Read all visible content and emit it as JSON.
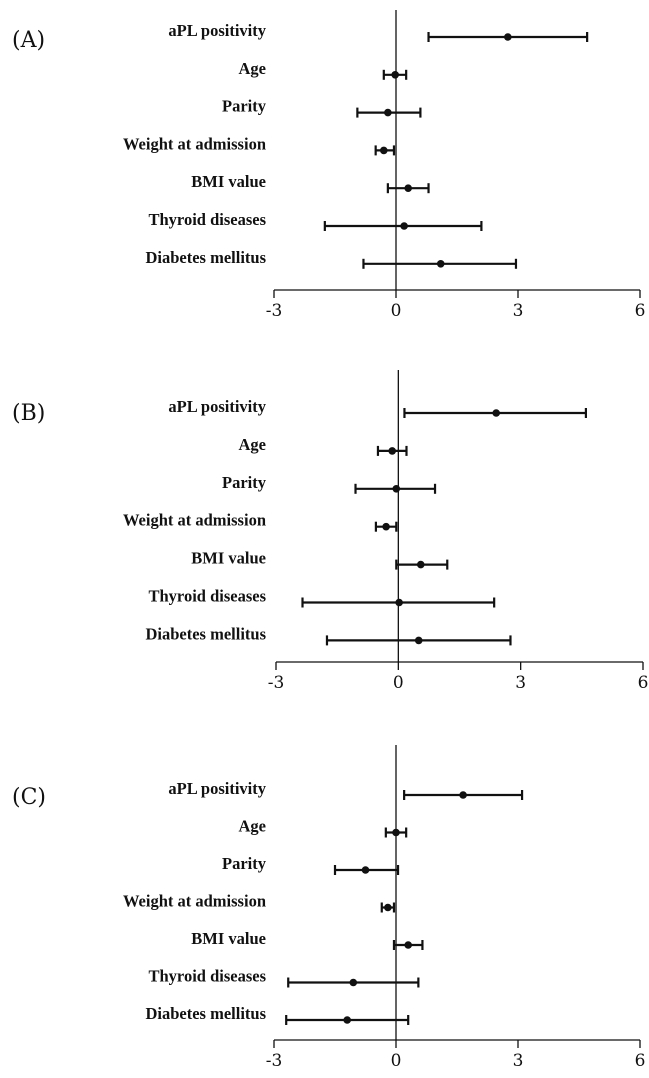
{
  "chart_data": [
    {
      "type": "forest",
      "panel_label": "(A)",
      "xlim": [
        -3,
        6
      ],
      "xticks": [
        -3,
        0,
        3,
        6
      ],
      "reference_line": 0,
      "rows": [
        {
          "label": "aPL positivity",
          "estimate": 2.75,
          "lower": 0.8,
          "upper": 4.7
        },
        {
          "label": "Age",
          "estimate": -0.02,
          "lower": -0.3,
          "upper": 0.25
        },
        {
          "label": "Parity",
          "estimate": -0.2,
          "lower": -0.95,
          "upper": 0.6
        },
        {
          "label": "Weight at admission",
          "estimate": -0.3,
          "lower": -0.5,
          "upper": -0.05
        },
        {
          "label": "BMI value",
          "estimate": 0.3,
          "lower": -0.2,
          "upper": 0.8
        },
        {
          "label": "Thyroid diseases",
          "estimate": 0.2,
          "lower": -1.75,
          "upper": 2.1
        },
        {
          "label": "Diabetes mellitus",
          "estimate": 1.1,
          "lower": -0.8,
          "upper": 2.95
        }
      ]
    },
    {
      "type": "forest",
      "panel_label": "(B)",
      "xlim": [
        -3,
        6
      ],
      "xticks": [
        -3,
        0,
        3,
        6
      ],
      "reference_line": 0,
      "rows": [
        {
          "label": "aPL positivity",
          "estimate": 2.4,
          "lower": 0.15,
          "upper": 4.6
        },
        {
          "label": "Age",
          "estimate": -0.15,
          "lower": -0.5,
          "upper": 0.2
        },
        {
          "label": "Parity",
          "estimate": -0.05,
          "lower": -1.05,
          "upper": 0.9
        },
        {
          "label": "Weight at admission",
          "estimate": -0.3,
          "lower": -0.55,
          "upper": -0.05
        },
        {
          "label": "BMI value",
          "estimate": 0.55,
          "lower": -0.05,
          "upper": 1.2
        },
        {
          "label": "Thyroid diseases",
          "estimate": 0.02,
          "lower": -2.35,
          "upper": 2.35
        },
        {
          "label": "Diabetes mellitus",
          "estimate": 0.5,
          "lower": -1.75,
          "upper": 2.75
        }
      ]
    },
    {
      "type": "forest",
      "panel_label": "(C)",
      "xlim": [
        -3,
        6
      ],
      "xticks": [
        -3,
        0,
        3,
        6
      ],
      "reference_line": 0,
      "rows": [
        {
          "label": "aPL positivity",
          "estimate": 1.65,
          "lower": 0.2,
          "upper": 3.1
        },
        {
          "label": "Age",
          "estimate": 0.0,
          "lower": -0.25,
          "upper": 0.25
        },
        {
          "label": "Parity",
          "estimate": -0.75,
          "lower": -1.5,
          "upper": 0.05
        },
        {
          "label": "Weight at admission",
          "estimate": -0.2,
          "lower": -0.35,
          "upper": -0.05
        },
        {
          "label": "BMI value",
          "estimate": 0.3,
          "lower": -0.05,
          "upper": 0.65
        },
        {
          "label": "Thyroid diseases",
          "estimate": -1.05,
          "lower": -2.65,
          "upper": 0.55
        },
        {
          "label": "Diabetes mellitus",
          "estimate": -1.2,
          "lower": -2.7,
          "upper": 0.3
        }
      ]
    }
  ]
}
